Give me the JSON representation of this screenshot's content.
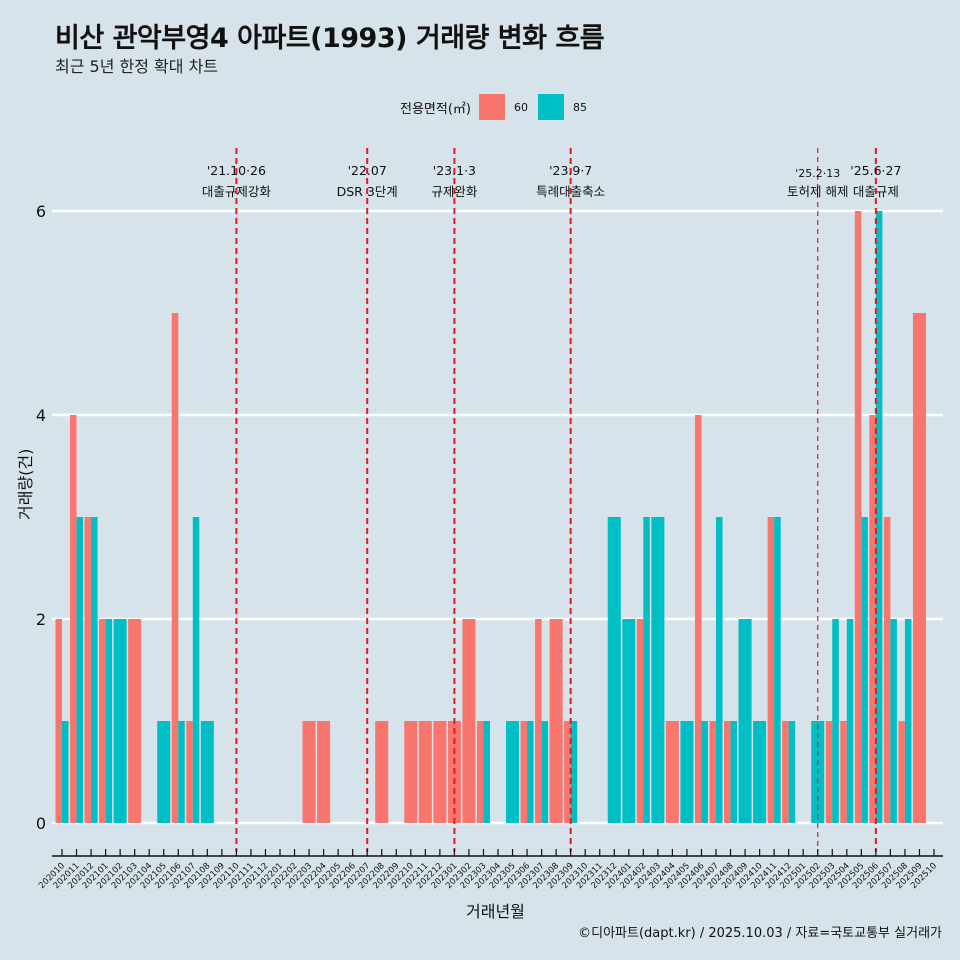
{
  "header": {
    "title": "비산 관악부영4 아파트(1993) 거래량 변화 흐름",
    "subtitle": "최근 5년 한정 확대 차트"
  },
  "legend": {
    "title": "전용면적(㎡)",
    "items": [
      {
        "label": "60",
        "color": "#f8766d"
      },
      {
        "label": "85",
        "color": "#00bfc4"
      }
    ]
  },
  "caption": "©디아파트(dapt.kr) / 2025.10.03 / 자료=국토교통부 실거래가",
  "chart_data": {
    "type": "bar",
    "title": "비산 관악부영4 아파트(1993) 거래량 변화 흐름",
    "subtitle": "최근 5년 한정 확대 차트",
    "xlabel": "거래년월",
    "ylabel": "거래량(건)",
    "ylim": [
      0,
      6.5
    ],
    "yticks": [
      0,
      2,
      4,
      6
    ],
    "grid": "horizontal",
    "legend_position": "top",
    "categories": [
      "202010",
      "202011",
      "202012",
      "202101",
      "202102",
      "202103",
      "202104",
      "202105",
      "202106",
      "202107",
      "202108",
      "202109",
      "202110",
      "202111",
      "202112",
      "202201",
      "202202",
      "202203",
      "202204",
      "202205",
      "202206",
      "202207",
      "202208",
      "202209",
      "202210",
      "202211",
      "202212",
      "202301",
      "202302",
      "202303",
      "202304",
      "202305",
      "202306",
      "202307",
      "202308",
      "202309",
      "202310",
      "202311",
      "202312",
      "202401",
      "202402",
      "202403",
      "202404",
      "202405",
      "202406",
      "202407",
      "202408",
      "202409",
      "202410",
      "202411",
      "202412",
      "202501",
      "202502",
      "202503",
      "202504",
      "202505",
      "202506",
      "202507",
      "202508",
      "202509",
      "202510"
    ],
    "series": [
      {
        "name": "60",
        "color": "#f8766d",
        "values": [
          2,
          4,
          3,
          2,
          0,
          2,
          0,
          0,
          5,
          1,
          0,
          0,
          0,
          0,
          0,
          0,
          0,
          1,
          1,
          0,
          0,
          0,
          1,
          0,
          1,
          1,
          1,
          1,
          2,
          1,
          0,
          0,
          1,
          2,
          2,
          1,
          0,
          0,
          0,
          0,
          2,
          0,
          1,
          0,
          4,
          1,
          1,
          0,
          0,
          3,
          1,
          0,
          0,
          1,
          1,
          6,
          4,
          3,
          1,
          5,
          0
        ]
      },
      {
        "name": "85",
        "color": "#00bfc4",
        "values": [
          1,
          3,
          3,
          2,
          2,
          0,
          0,
          1,
          1,
          3,
          1,
          0,
          0,
          0,
          0,
          0,
          0,
          0,
          0,
          0,
          0,
          0,
          0,
          0,
          0,
          0,
          0,
          0,
          0,
          1,
          0,
          1,
          1,
          1,
          0,
          1,
          0,
          0,
          3,
          2,
          3,
          3,
          0,
          1,
          1,
          3,
          1,
          2,
          1,
          3,
          1,
          0,
          1,
          2,
          2,
          3,
          6,
          2,
          2,
          0,
          0
        ]
      }
    ],
    "annotations": [
      {
        "month": "202110",
        "date": "'21.10·26",
        "label": "대출규제강화"
      },
      {
        "month": "202207",
        "date": "'22.07",
        "label": "DSR 3단계"
      },
      {
        "month": "202301",
        "date": "'23.1·3",
        "label": "규제완화"
      },
      {
        "month": "202309",
        "date": "'23.9·7",
        "label": "특례대출축소"
      },
      {
        "month": "202502",
        "date": "'25.2·13",
        "label": "토허제 해제"
      },
      {
        "month": "202506",
        "date": "'25.6·27",
        "label": "대출규제"
      }
    ],
    "annotation_line_color": "#e41a1c"
  }
}
